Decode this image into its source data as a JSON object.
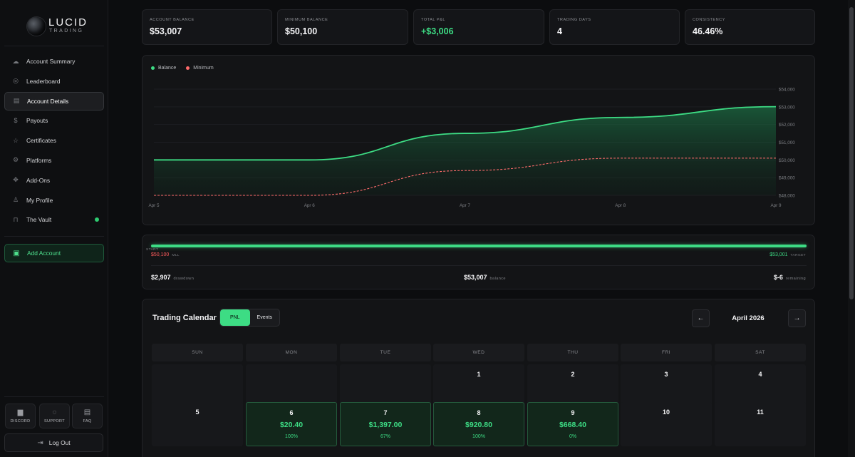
{
  "brand": {
    "name": "LUCID",
    "sub": "TRADING"
  },
  "nav": [
    {
      "label": "Account Summary",
      "icon": "cloud-icon"
    },
    {
      "label": "Leaderboard",
      "icon": "globe-icon"
    },
    {
      "label": "Account Details",
      "icon": "document-icon",
      "active": true
    },
    {
      "label": "Payouts",
      "icon": "dollar-icon"
    },
    {
      "label": "Certificates",
      "icon": "star-icon"
    },
    {
      "label": "Platforms",
      "icon": "gear-icon"
    },
    {
      "label": "Add-Ons",
      "icon": "puzzle-icon"
    },
    {
      "label": "My Profile",
      "icon": "user-icon"
    },
    {
      "label": "The Vault",
      "icon": "lock-icon",
      "status_dot": true
    }
  ],
  "add_account_label": "Add Account",
  "quick_links": [
    {
      "label": "DISCORD",
      "icon": "discord-icon"
    },
    {
      "label": "SUPPORT",
      "icon": "chat-icon"
    },
    {
      "label": "FAQ",
      "icon": "book-icon"
    }
  ],
  "logout_label": "Log Out",
  "stats": [
    {
      "label": "ACCOUNT BALANCE",
      "value": "$53,007"
    },
    {
      "label": "MINIMUM BALANCE",
      "value": "$50,100"
    },
    {
      "label": "TOTAL P&L",
      "value": "+$3,006",
      "positive": true
    },
    {
      "label": "TRADING DAYS",
      "value": "4"
    },
    {
      "label": "CONSISTENCY",
      "value": "46.46%"
    }
  ],
  "chart_data": {
    "type": "line",
    "x": [
      "Apr 5",
      "Apr 6",
      "Apr 7",
      "Apr 8",
      "Apr 9"
    ],
    "series": [
      {
        "name": "Balance",
        "values": [
          50000,
          50000,
          51500,
          52400,
          53007
        ],
        "color": "#3ddc84"
      },
      {
        "name": "Minimum",
        "values": [
          48000,
          48000,
          49400,
          50100,
          50100
        ],
        "color": "#ff6b6b"
      }
    ],
    "ylim": [
      48000,
      54000
    ],
    "yticks": [
      "$54,000",
      "$53,000",
      "$52,000",
      "$51,000",
      "$50,000",
      "$49,000",
      "$48,000"
    ],
    "legend": "top-left"
  },
  "progress": {
    "start_label": "START",
    "mll_value": "$50,100",
    "mll_label": "MLL",
    "target_value": "$53,001",
    "target_label": "TARGET",
    "fill_fraction": 1.0,
    "drawdown_value": "$2,907",
    "drawdown_label": "drawdown",
    "balance_value": "$53,007",
    "balance_label": "balance",
    "remaining_value": "$-6",
    "remaining_label": "remaining"
  },
  "calendar": {
    "title": "Trading Calendar",
    "toggle": [
      "PNL",
      "Events"
    ],
    "month": "April 2026",
    "prev": "←",
    "next": "→",
    "days_of_week": [
      "SUN",
      "MON",
      "TUE",
      "WED",
      "THU",
      "FRI",
      "SAT"
    ],
    "weeks": [
      [
        {
          "d": ""
        },
        {
          "d": ""
        },
        {
          "d": ""
        },
        {
          "d": "1"
        },
        {
          "d": "2"
        },
        {
          "d": "3"
        },
        {
          "d": "4"
        }
      ],
      [
        {
          "d": "5"
        },
        {
          "d": "6",
          "pnl": "$20.40",
          "pct": "100%"
        },
        {
          "d": "7",
          "pnl": "$1,397.00",
          "pct": "67%"
        },
        {
          "d": "8",
          "pnl": "$920.80",
          "pct": "100%"
        },
        {
          "d": "9",
          "pnl": "$668.40",
          "pct": "0%"
        },
        {
          "d": "10"
        },
        {
          "d": "11"
        }
      ]
    ]
  }
}
